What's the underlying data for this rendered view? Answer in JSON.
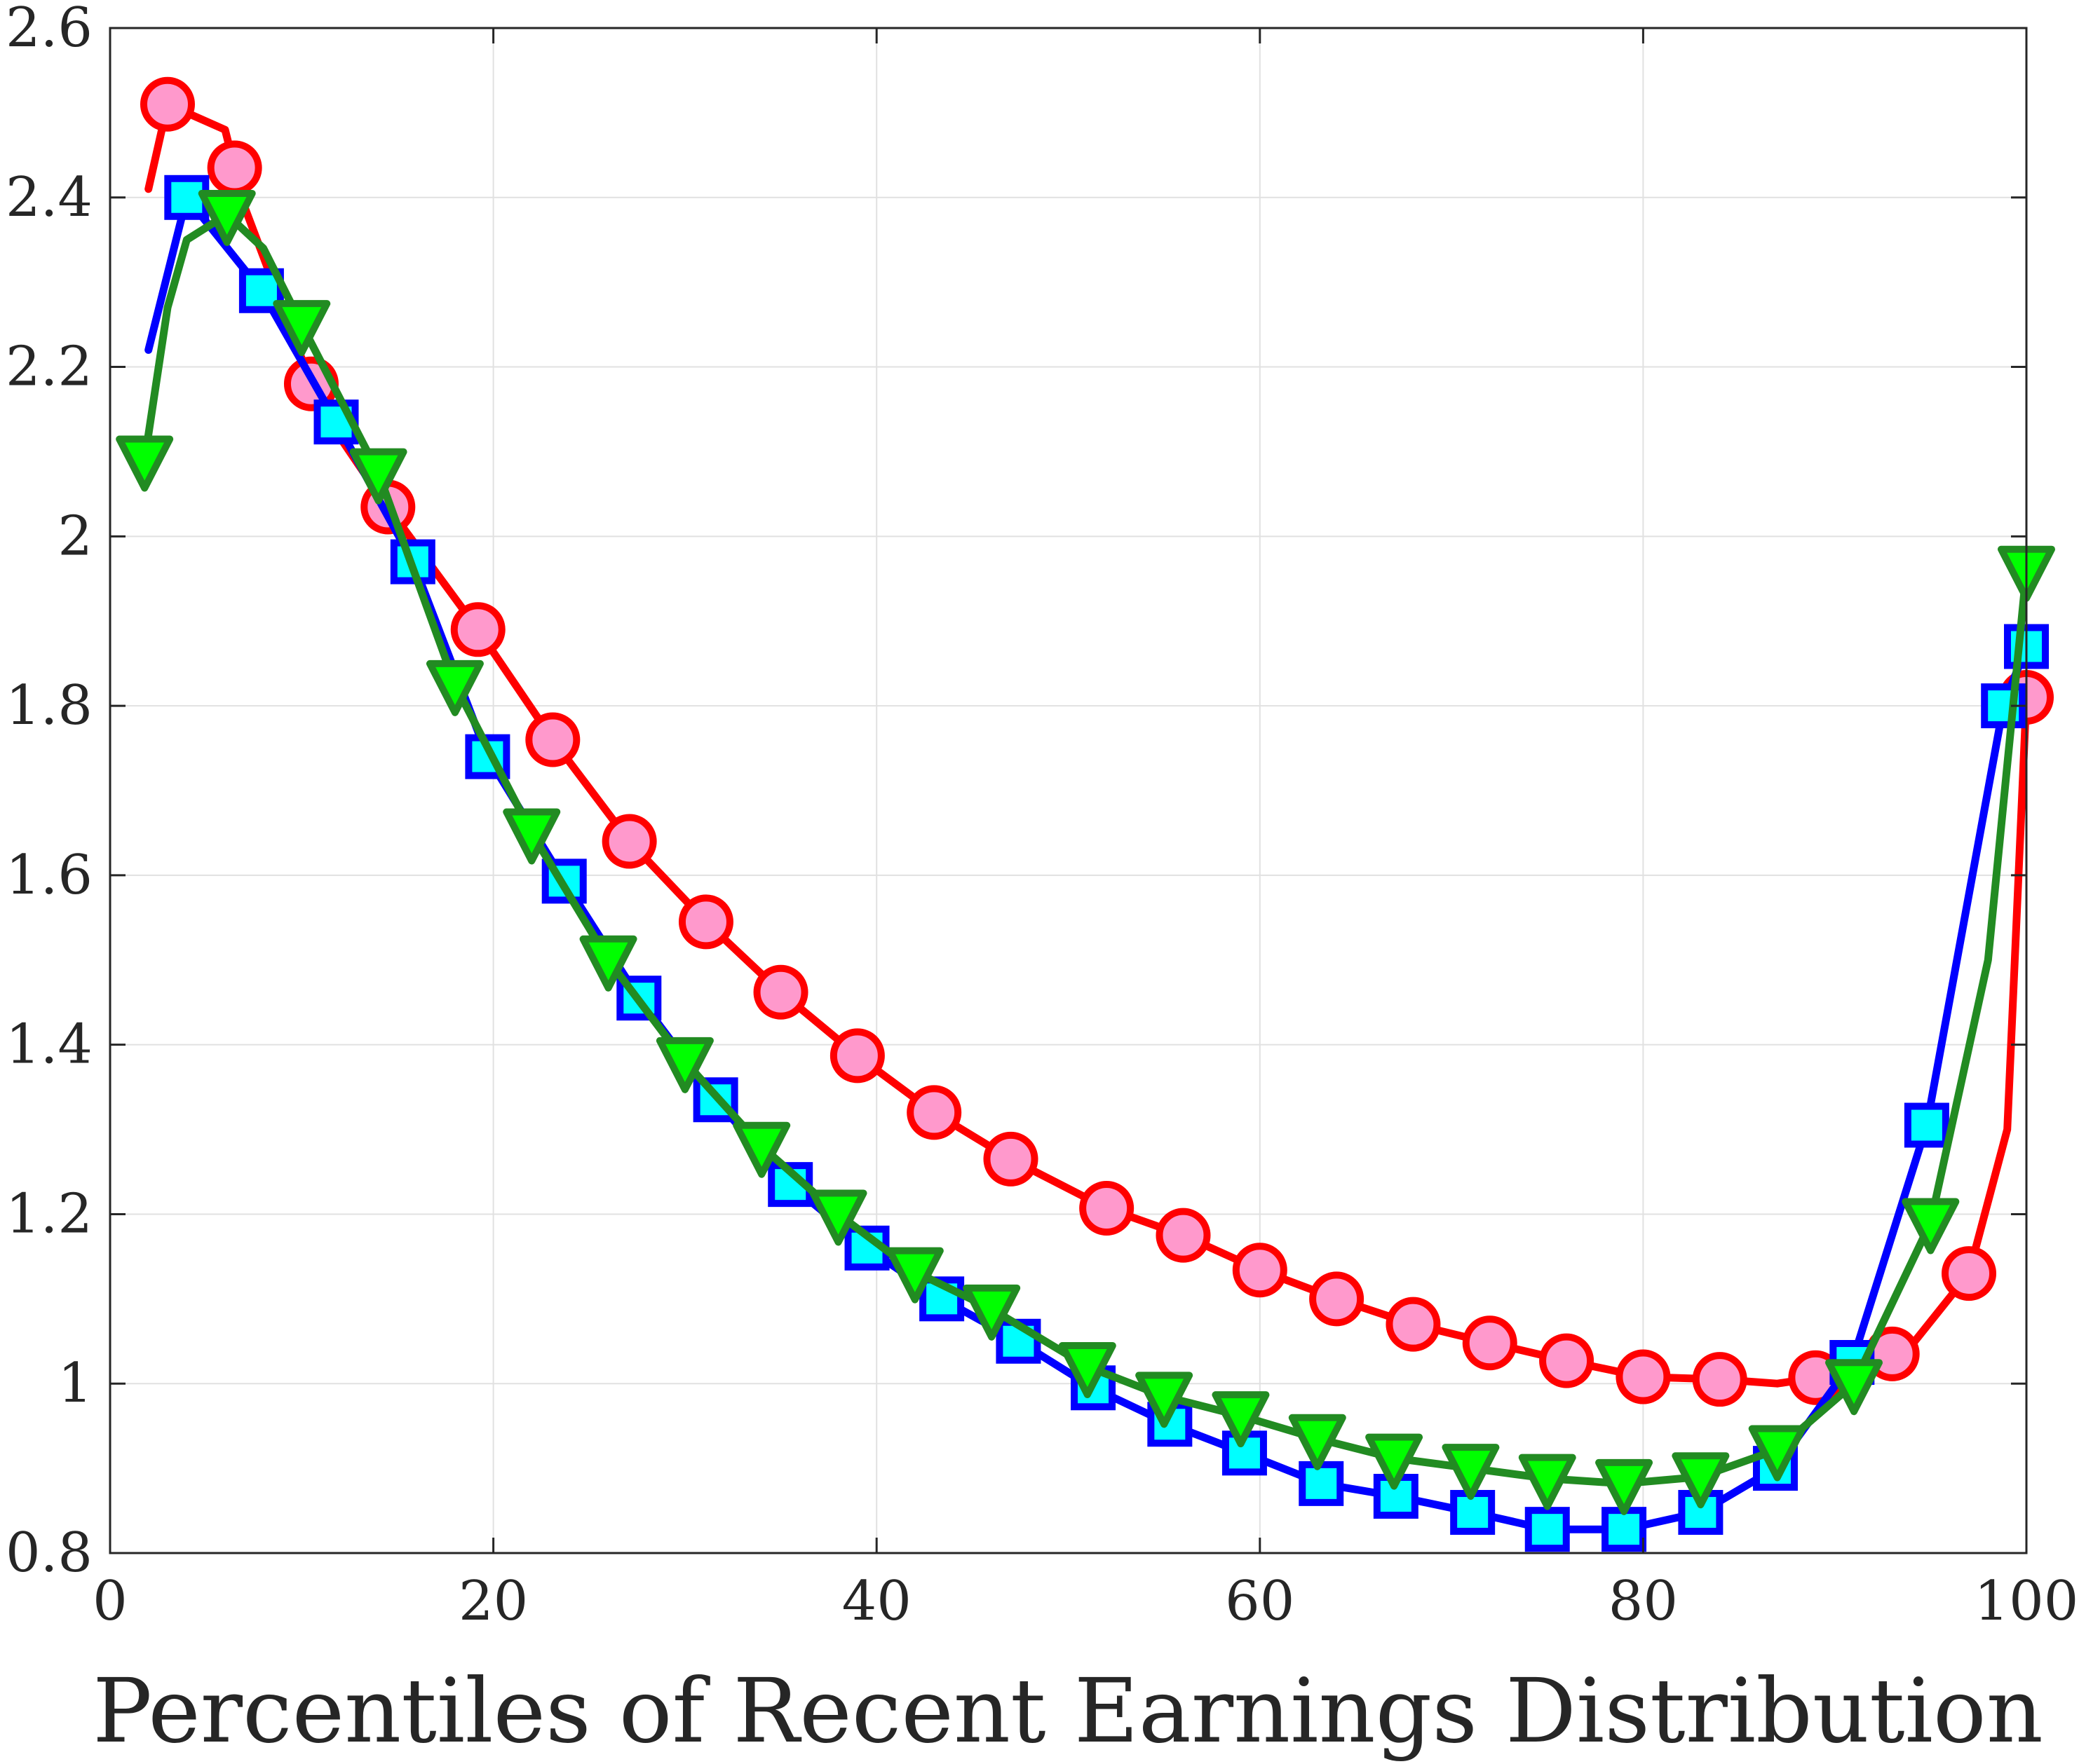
{
  "chart_data": {
    "type": "line",
    "title": "",
    "xlabel": "Percentiles of Recent Earnings Distribution",
    "ylabel": "",
    "xlim": [
      0,
      100
    ],
    "ylim": [
      0.8,
      2.6
    ],
    "xticks": [
      "0",
      "20",
      "40",
      "60",
      "80",
      "100"
    ],
    "yticks": [
      "0.8",
      "1",
      "1.2",
      "1.4",
      "1.6",
      "1.8",
      "2",
      "2.2",
      "2.4",
      "2.6"
    ],
    "grid": true,
    "legend": "none",
    "series": [
      {
        "color": "#ff0000",
        "marker": "circle",
        "marker_fill": "#ff99cc",
        "x": [
          2.0,
          3.0,
          6.0,
          7.0,
          10.0,
          11.0,
          14.0,
          19.2,
          23.1,
          27.1,
          31.1,
          35.0,
          39.0,
          43.0,
          47.0,
          52.0,
          56.0,
          60.0,
          64.0,
          68.0,
          72.0,
          76.0,
          80.0,
          84.0,
          87.0,
          89.0,
          92.0,
          94.0,
          97.0,
          99.0,
          100.0
        ],
        "y": [
          2.41,
          2.51,
          2.48,
          2.39,
          2.21,
          2.15,
          2.05,
          1.89,
          1.76,
          1.64,
          1.545,
          1.462,
          1.387,
          1.32,
          1.265,
          1.207,
          1.175,
          1.134,
          1.1,
          1.07,
          1.048,
          1.027,
          1.008,
          1.005,
          1.0,
          1.007,
          1.025,
          1.045,
          1.13,
          1.3,
          1.81
        ],
        "marker_x": [
          3.0,
          6.5,
          10.5,
          14.5,
          19.2,
          23.1,
          27.1,
          31.1,
          35.0,
          39.0,
          43.0,
          47.0,
          52.0,
          56.0,
          60.0,
          64.0,
          68.0,
          72.0,
          76.0,
          80.0,
          84.0,
          89.0,
          93.0,
          97.0,
          100.0
        ]
      },
      {
        "color": "#0000ff",
        "marker": "square",
        "marker_fill": "#00ffff",
        "x": [
          2.0,
          4.0,
          7.9,
          11.8,
          15.8,
          19.7,
          23.7,
          27.6,
          31.6,
          35.5,
          39.5,
          43.4,
          47.4,
          51.3,
          55.3,
          59.2,
          63.2,
          67.1,
          71.1,
          75.0,
          79.0,
          83.0,
          86.9,
          90.9,
          94.8,
          98.8,
          100.0
        ],
        "y": [
          2.22,
          2.4,
          2.29,
          2.135,
          1.97,
          1.74,
          1.593,
          1.455,
          1.335,
          1.235,
          1.16,
          1.1,
          1.05,
          0.995,
          0.952,
          0.918,
          0.882,
          0.867,
          0.848,
          0.828,
          0.828,
          0.848,
          0.9,
          1.025,
          1.305,
          1.8,
          1.87
        ],
        "marker_x": [
          4.0,
          7.9,
          11.8,
          15.8,
          19.7,
          23.7,
          27.6,
          31.6,
          35.5,
          39.5,
          43.4,
          47.4,
          51.3,
          55.3,
          59.2,
          63.2,
          67.1,
          71.1,
          75.0,
          79.0,
          83.0,
          86.9,
          90.9,
          94.8,
          98.8,
          100.0
        ]
      },
      {
        "color": "#228b22",
        "marker": "triangle-down",
        "marker_fill": "#00ff00",
        "x": [
          1.8,
          3.0,
          4.0,
          6.1,
          8.0,
          10.0,
          14.0,
          18.0,
          22.0,
          26.0,
          30.0,
          34.0,
          38.0,
          42.0,
          46.0,
          51.0,
          55.0,
          59.0,
          63.0,
          67.0,
          71.0,
          75.0,
          79.0,
          83.0,
          87.0,
          91.0,
          95.0,
          98.0,
          100.0
        ],
        "y": [
          2.09,
          2.27,
          2.35,
          2.38,
          2.34,
          2.25,
          2.075,
          1.825,
          1.65,
          1.5,
          1.38,
          1.28,
          1.2,
          1.132,
          1.088,
          1.02,
          0.985,
          0.962,
          0.935,
          0.912,
          0.9,
          0.888,
          0.882,
          0.89,
          0.922,
          1.0,
          1.19,
          1.5,
          1.96
        ],
        "marker_x": [
          1.8,
          6.1,
          10.0,
          14.0,
          18.0,
          22.0,
          26.0,
          30.0,
          34.0,
          38.0,
          42.0,
          46.0,
          51.0,
          55.0,
          59.0,
          63.0,
          67.0,
          71.0,
          75.0,
          79.0,
          83.0,
          87.0,
          91.0,
          95.0,
          100.0
        ]
      }
    ]
  }
}
